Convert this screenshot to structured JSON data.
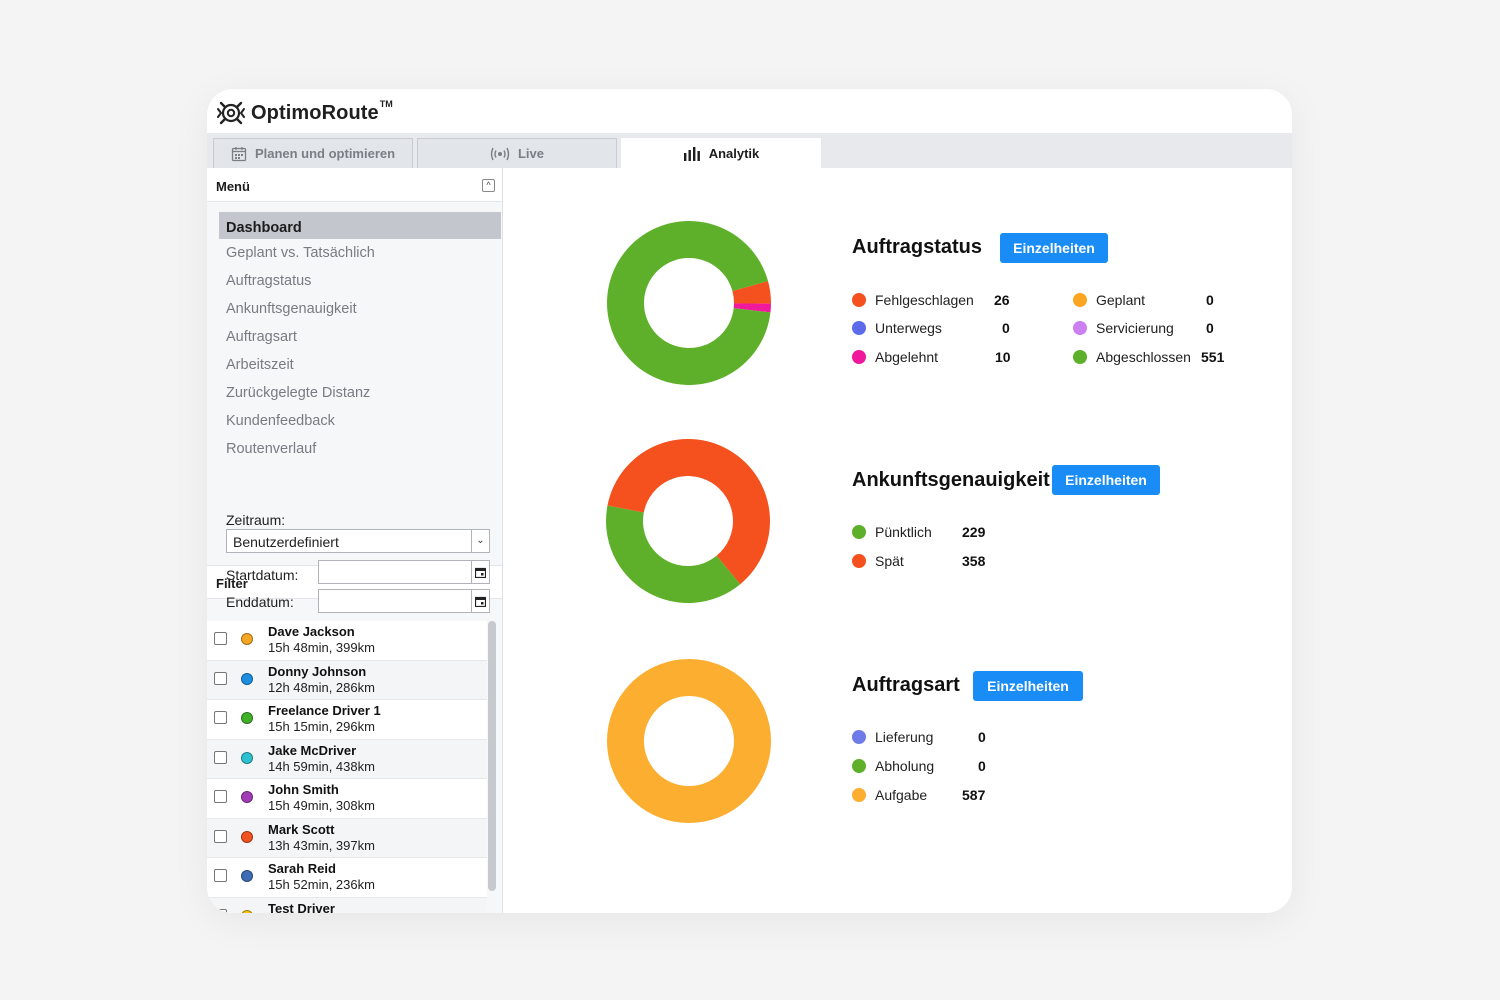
{
  "app": {
    "name": "OptimoRoute",
    "trademark": "TM"
  },
  "tabs": [
    {
      "label": "Planen und optimieren",
      "icon": "calendar-icon",
      "active": false
    },
    {
      "label": "Live",
      "icon": "broadcast-icon",
      "active": false
    },
    {
      "label": "Analytik",
      "icon": "bar-chart-icon",
      "active": true
    }
  ],
  "menu": {
    "title": "Menü",
    "items": [
      {
        "label": "Dashboard",
        "active": true
      },
      {
        "label": "Geplant vs. Tatsächlich"
      },
      {
        "label": "Auftragstatus"
      },
      {
        "label": "Ankunftsgenauigkeit"
      },
      {
        "label": "Auftragsart"
      },
      {
        "label": "Arbeitszeit"
      },
      {
        "label": "Zurückgelegte Distanz"
      },
      {
        "label": "Kundenfeedback"
      },
      {
        "label": "Routenverlauf"
      }
    ]
  },
  "filter": {
    "title": "Filter",
    "period_label": "Zeitraum:",
    "period_value": "Benutzerdefiniert",
    "start_label": "Startdatum:",
    "start_value": "",
    "end_label": "Enddatum:",
    "end_value": ""
  },
  "drivers": [
    {
      "name": "Dave Jackson",
      "info": "15h 48min, 399km",
      "color": "#f5a623"
    },
    {
      "name": "Donny Johnson",
      "info": "12h 48min, 286km",
      "color": "#1e8fe0"
    },
    {
      "name": "Freelance Driver 1",
      "info": "15h 15min, 296km",
      "color": "#3fb027"
    },
    {
      "name": "Jake McDriver",
      "info": "14h 59min, 438km",
      "color": "#2cc0d0"
    },
    {
      "name": "John Smith",
      "info": "15h 49min, 308km",
      "color": "#a23cb5"
    },
    {
      "name": "Mark Scott",
      "info": "13h 43min, 397km",
      "color": "#f2521f"
    },
    {
      "name": "Sarah Reid",
      "info": "15h 52min, 236km",
      "color": "#3f6db5"
    },
    {
      "name": "Test Driver",
      "info": "",
      "color": "#f4c20d"
    }
  ],
  "sections": {
    "auftragstatus": {
      "title": "Auftragstatus",
      "button": "Einzelheiten",
      "legend": [
        {
          "label": "Fehlgeschlagen",
          "value": "26",
          "color": "#f4511e"
        },
        {
          "label": "Unterwegs",
          "value": "0",
          "color": "#5c6bec"
        },
        {
          "label": "Abgelehnt",
          "value": "10",
          "color": "#f0189b"
        },
        {
          "label": "Geplant",
          "value": "0",
          "color": "#fba520"
        },
        {
          "label": "Servicierung",
          "value": "0",
          "color": "#cc7ff0"
        },
        {
          "label": "Abgeschlossen",
          "value": "551",
          "color": "#5eb02a"
        }
      ]
    },
    "ankunft": {
      "title": "Ankunftsgenauigkeit",
      "button": "Einzelheiten",
      "legend": [
        {
          "label": "Pünktlich",
          "value": "229",
          "color": "#5eb02a"
        },
        {
          "label": "Spät",
          "value": "358",
          "color": "#f4511e"
        }
      ]
    },
    "auftragsart": {
      "title": "Auftragsart",
      "button": "Einzelheiten",
      "legend": [
        {
          "label": "Lieferung",
          "value": "0",
          "color": "#6f7ce8"
        },
        {
          "label": "Abholung",
          "value": "0",
          "color": "#5eb02a"
        },
        {
          "label": "Aufgabe",
          "value": "587",
          "color": "#fbae30"
        }
      ]
    }
  },
  "chart_data": [
    {
      "type": "pie",
      "categories": [
        "Fehlgeschlagen",
        "Unterwegs",
        "Abgelehnt",
        "Geplant",
        "Servicierung",
        "Abgeschlossen"
      ],
      "values": [
        26,
        0,
        10,
        0,
        0,
        551
      ],
      "colors": [
        "#f4511e",
        "#5c6bec",
        "#f0189b",
        "#fba520",
        "#cc7ff0",
        "#5eb02a"
      ],
      "title": "Auftragstatus"
    },
    {
      "type": "pie",
      "categories": [
        "Pünktlich",
        "Spät"
      ],
      "values": [
        229,
        358
      ],
      "colors": [
        "#5eb02a",
        "#f4511e"
      ],
      "title": "Ankunftsgenauigkeit"
    },
    {
      "type": "pie",
      "categories": [
        "Lieferung",
        "Abholung",
        "Aufgabe"
      ],
      "values": [
        0,
        0,
        587
      ],
      "colors": [
        "#6f7ce8",
        "#5eb02a",
        "#fbae30"
      ],
      "title": "Auftragsart"
    }
  ]
}
